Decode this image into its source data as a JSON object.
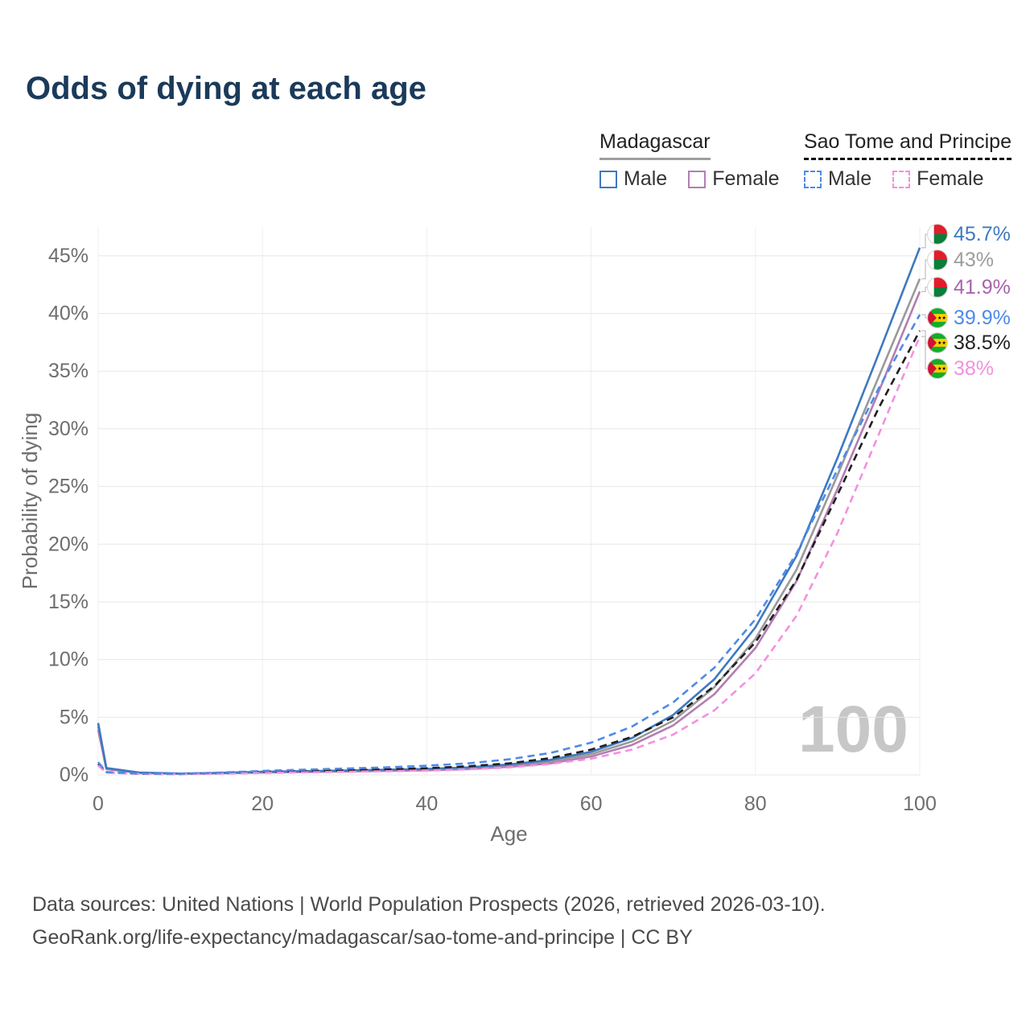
{
  "legend": {
    "groups": [
      {
        "title": "Madagascar",
        "underline": "solid",
        "underline_color": "#9e9e9e",
        "items": [
          {
            "label": "Male",
            "color": "#3d79c0",
            "dashed": false
          },
          {
            "label": "Female",
            "color": "#b27eb2",
            "dashed": false
          }
        ]
      },
      {
        "title": "Sao Tome and Principe",
        "underline": "dashed",
        "underline_color": "#111111",
        "items": [
          {
            "label": "Male",
            "color": "#4f8ae8",
            "dashed": true
          },
          {
            "label": "Female",
            "color": "#f291e0",
            "dashed": true
          }
        ]
      }
    ]
  },
  "chart_data": {
    "type": "line",
    "title": "Odds of dying at each age",
    "xlabel": "Age",
    "ylabel": "Probability of dying",
    "xlim": [
      0,
      100
    ],
    "ylim": [
      0,
      47.5
    ],
    "grid": true,
    "legend_position": "top-right",
    "hover_label": "100",
    "xticks": {
      "values": [
        0,
        20,
        40,
        60,
        80,
        100
      ],
      "labels": [
        "0",
        "20",
        "40",
        "60",
        "80",
        "100"
      ]
    },
    "yticks": {
      "values": [
        0,
        5,
        10,
        15,
        20,
        25,
        30,
        35,
        40,
        45
      ],
      "labels": [
        "0%",
        "5%",
        "10%",
        "15%",
        "20%",
        "25%",
        "30%",
        "35%",
        "40%",
        "45%"
      ]
    },
    "x": [
      0,
      1,
      5,
      10,
      15,
      20,
      25,
      30,
      35,
      40,
      45,
      50,
      55,
      60,
      65,
      70,
      75,
      80,
      85,
      90,
      95,
      100
    ],
    "series": [
      {
        "id": "madagascar-both",
        "name": "Madagascar (both sexes)",
        "color": "#9a9a9a",
        "dashed": false,
        "values": [
          4.2,
          0.55,
          0.18,
          0.11,
          0.16,
          0.24,
          0.29,
          0.33,
          0.39,
          0.46,
          0.58,
          0.8,
          1.15,
          1.8,
          2.9,
          4.7,
          7.6,
          11.8,
          17.8,
          26.0,
          34.5,
          43.0
        ]
      },
      {
        "id": "madagascar-female",
        "name": "Madagascar Female",
        "color": "#b27eb2",
        "dashed": false,
        "values": [
          3.9,
          0.5,
          0.17,
          0.1,
          0.14,
          0.2,
          0.25,
          0.29,
          0.34,
          0.4,
          0.5,
          0.7,
          1.0,
          1.6,
          2.6,
          4.3,
          7.0,
          11.0,
          16.8,
          24.8,
          33.2,
          41.9
        ]
      },
      {
        "id": "madagascar-male",
        "name": "Madagascar Male",
        "color": "#3d79c0",
        "dashed": false,
        "values": [
          4.5,
          0.6,
          0.2,
          0.12,
          0.18,
          0.28,
          0.33,
          0.38,
          0.45,
          0.52,
          0.65,
          0.9,
          1.3,
          2.0,
          3.2,
          5.2,
          8.3,
          12.8,
          19.0,
          27.5,
          36.5,
          45.7
        ]
      },
      {
        "id": "sao-tome-both",
        "name": "Sao Tome and Principe (both sexes)",
        "color": "#1f1f1f",
        "dashed": true,
        "values": [
          0.95,
          0.22,
          0.1,
          0.08,
          0.15,
          0.26,
          0.33,
          0.4,
          0.48,
          0.58,
          0.75,
          1.0,
          1.45,
          2.2,
          3.3,
          5.0,
          7.7,
          11.5,
          16.9,
          24.3,
          31.8,
          38.5
        ]
      },
      {
        "id": "sao-tome-female",
        "name": "Sao Tome and Principe Female",
        "color": "#f291e0",
        "dashed": true,
        "values": [
          0.8,
          0.2,
          0.09,
          0.07,
          0.11,
          0.17,
          0.22,
          0.27,
          0.32,
          0.38,
          0.48,
          0.65,
          0.95,
          1.4,
          2.2,
          3.5,
          5.6,
          8.8,
          13.8,
          21.0,
          29.5,
          38.0
        ]
      },
      {
        "id": "sao-tome-male",
        "name": "Sao Tome and Principe Male",
        "color": "#4f8ae8",
        "dashed": true,
        "values": [
          1.1,
          0.25,
          0.12,
          0.1,
          0.2,
          0.35,
          0.45,
          0.55,
          0.65,
          0.8,
          1.0,
          1.35,
          1.9,
          2.8,
          4.2,
          6.3,
          9.3,
          13.5,
          19.2,
          26.5,
          33.5,
          39.9
        ]
      }
    ],
    "end_labels": [
      {
        "value": "45.7%",
        "value_num": 45.7,
        "color": "#3d79c0",
        "flag": "madagascar"
      },
      {
        "value": "43%",
        "value_num": 43.0,
        "color": "#9c9c9c",
        "flag": "madagascar"
      },
      {
        "value": "41.9%",
        "value_num": 41.9,
        "color": "#a863ae",
        "flag": "madagascar"
      },
      {
        "value": "39.9%",
        "value_num": 39.9,
        "color": "#4f8ae8",
        "flag": "sao-tome-and-principe"
      },
      {
        "value": "38.5%",
        "value_num": 38.5,
        "color": "#222222",
        "flag": "sao-tome-and-principe"
      },
      {
        "value": "38%",
        "value_num": 38.0,
        "color": "#f291e0",
        "flag": "sao-tome-and-principe"
      }
    ]
  },
  "footer": {
    "line1": "Data sources: United Nations | World Population Prospects (2026, retrieved 2026-03-10).",
    "line2": "GeoRank.org/life-expectancy/madagascar/sao-tome-and-principe | CC BY"
  }
}
